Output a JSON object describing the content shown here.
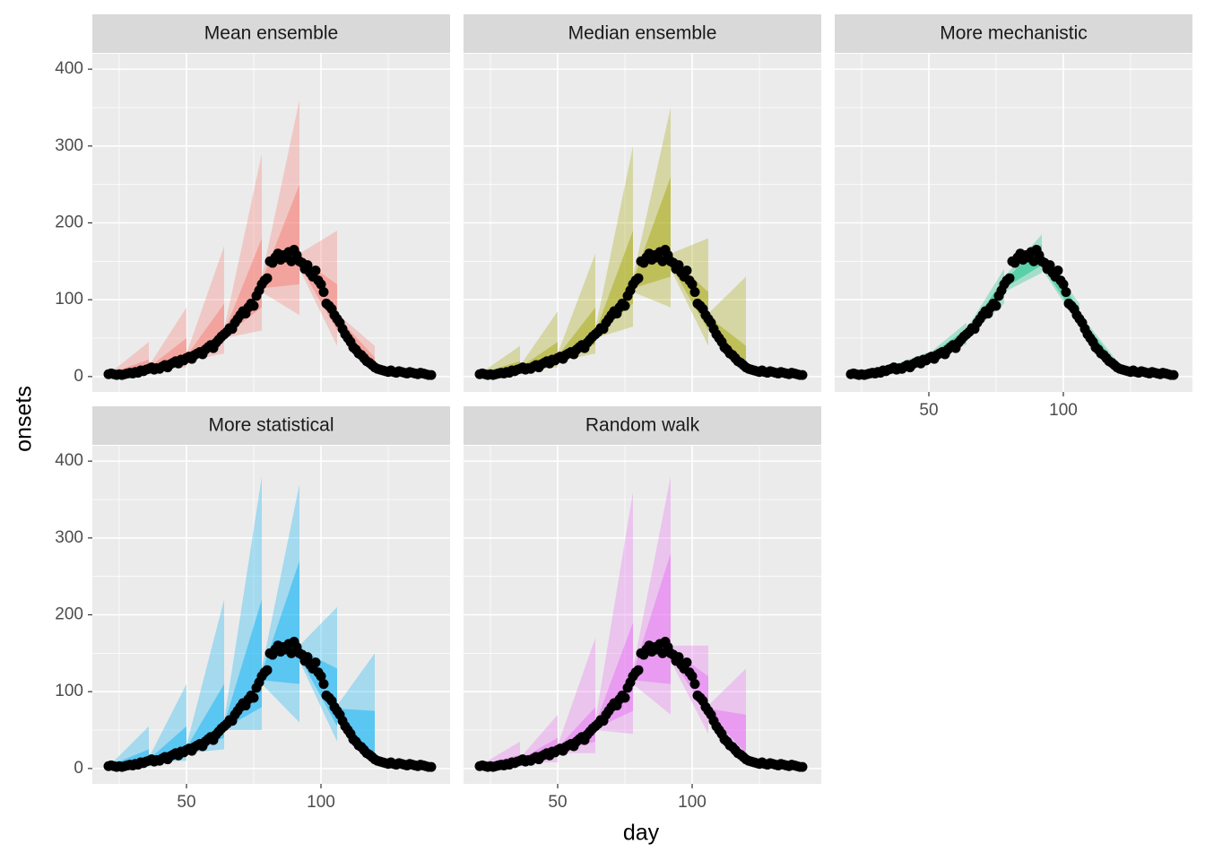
{
  "chart_data": {
    "type": "ribbon",
    "x_label": "day",
    "y_label": "onsets",
    "xlim": [
      15,
      148
    ],
    "ylim": [
      -20,
      420
    ],
    "xticks": [
      50,
      100
    ],
    "yticks": [
      0,
      100,
      200,
      300,
      400
    ],
    "xminor": [
      25,
      75,
      125
    ],
    "yminor": [
      50,
      150,
      250,
      350
    ],
    "grid": true,
    "point_color": "#000000",
    "observed": {
      "x": [
        21,
        22,
        23,
        24,
        25,
        26,
        27,
        28,
        29,
        30,
        31,
        32,
        33,
        34,
        35,
        36,
        37,
        38,
        39,
        40,
        41,
        42,
        43,
        44,
        45,
        46,
        47,
        48,
        49,
        50,
        51,
        52,
        53,
        54,
        55,
        56,
        57,
        58,
        59,
        60,
        61,
        62,
        63,
        64,
        65,
        66,
        67,
        68,
        69,
        70,
        71,
        72,
        73,
        74,
        75,
        76,
        77,
        78,
        79,
        80,
        81,
        82,
        83,
        84,
        85,
        86,
        87,
        88,
        89,
        90,
        91,
        92,
        93,
        94,
        95,
        96,
        97,
        98,
        99,
        100,
        101,
        102,
        103,
        104,
        105,
        106,
        107,
        108,
        109,
        110,
        111,
        112,
        113,
        114,
        115,
        116,
        117,
        118,
        119,
        120,
        121,
        122,
        123,
        124,
        125,
        126,
        127,
        128,
        129,
        130,
        131,
        132,
        133,
        134,
        135,
        136,
        137,
        138,
        139,
        140,
        141
      ],
      "values": [
        3,
        4,
        3,
        2,
        3,
        2,
        3,
        4,
        5,
        4,
        6,
        5,
        8,
        7,
        9,
        10,
        12,
        9,
        11,
        10,
        13,
        15,
        12,
        16,
        18,
        20,
        17,
        22,
        21,
        24,
        26,
        23,
        28,
        30,
        32,
        29,
        35,
        38,
        41,
        37,
        44,
        48,
        52,
        55,
        58,
        63,
        62,
        70,
        75,
        80,
        85,
        82,
        90,
        95,
        92,
        105,
        112,
        120,
        125,
        128,
        150,
        148,
        155,
        160,
        152,
        158,
        155,
        162,
        150,
        165,
        158,
        150,
        148,
        140,
        145,
        135,
        130,
        138,
        125,
        120,
        110,
        95,
        92,
        88,
        80,
        75,
        70,
        62,
        55,
        50,
        45,
        38,
        35,
        30,
        28,
        24,
        20,
        18,
        15,
        12,
        10,
        9,
        8,
        7,
        6,
        8,
        6,
        5,
        7,
        6,
        5,
        4,
        6,
        5,
        4,
        3,
        5,
        4,
        3,
        2,
        2
      ]
    },
    "panels": [
      {
        "title": "Mean ensemble",
        "color": "#F8766D",
        "forecasts": [
          {
            "start": 22,
            "end": 36,
            "lo90": [
              2,
              4
            ],
            "hi90": [
              6,
              45
            ],
            "lo50": [
              3,
              8
            ],
            "hi50": [
              5,
              22
            ]
          },
          {
            "start": 36,
            "end": 50,
            "lo90": [
              8,
              12
            ],
            "hi90": [
              14,
              90
            ],
            "lo50": [
              9,
              20
            ],
            "hi50": [
              12,
              50
            ]
          },
          {
            "start": 50,
            "end": 64,
            "lo90": [
              20,
              30
            ],
            "hi90": [
              30,
              170
            ],
            "lo50": [
              22,
              45
            ],
            "hi50": [
              27,
              95
            ]
          },
          {
            "start": 64,
            "end": 78,
            "lo90": [
              50,
              60
            ],
            "hi90": [
              62,
              290
            ],
            "lo50": [
              52,
              90
            ],
            "hi50": [
              58,
              180
            ]
          },
          {
            "start": 78,
            "end": 92,
            "lo90": [
              110,
              80
            ],
            "hi90": [
              130,
              360
            ],
            "lo50": [
              115,
              120
            ],
            "hi50": [
              125,
              250
            ]
          },
          {
            "start": 92,
            "end": 106,
            "lo90": [
              140,
              40
            ],
            "hi90": [
              160,
              190
            ],
            "lo50": [
              145,
              60
            ],
            "hi50": [
              155,
              120
            ]
          },
          {
            "start": 106,
            "end": 120,
            "lo90": [
              68,
              5
            ],
            "hi90": [
              82,
              40
            ],
            "lo50": [
              72,
              10
            ],
            "hi50": [
              78,
              25
            ]
          }
        ]
      },
      {
        "title": "Median ensemble",
        "color": "#A3A500",
        "forecasts": [
          {
            "start": 22,
            "end": 36,
            "lo90": [
              2,
              4
            ],
            "hi90": [
              6,
              40
            ],
            "lo50": [
              3,
              7
            ],
            "hi50": [
              5,
              20
            ]
          },
          {
            "start": 36,
            "end": 50,
            "lo90": [
              8,
              12
            ],
            "hi90": [
              14,
              85
            ],
            "lo50": [
              9,
              18
            ],
            "hi50": [
              12,
              45
            ]
          },
          {
            "start": 50,
            "end": 64,
            "lo90": [
              20,
              30
            ],
            "hi90": [
              30,
              160
            ],
            "lo50": [
              22,
              42
            ],
            "hi50": [
              27,
              90
            ]
          },
          {
            "start": 64,
            "end": 78,
            "lo90": [
              50,
              65
            ],
            "hi90": [
              62,
              300
            ],
            "lo50": [
              52,
              95
            ],
            "hi50": [
              58,
              190
            ]
          },
          {
            "start": 78,
            "end": 92,
            "lo90": [
              110,
              90
            ],
            "hi90": [
              130,
              350
            ],
            "lo50": [
              115,
              130
            ],
            "hi50": [
              125,
              260
            ]
          },
          {
            "start": 92,
            "end": 106,
            "lo90": [
              140,
              40
            ],
            "hi90": [
              160,
              180
            ],
            "lo50": [
              145,
              60
            ],
            "hi50": [
              155,
              110
            ]
          },
          {
            "start": 106,
            "end": 120,
            "lo90": [
              68,
              5
            ],
            "hi90": [
              82,
              130
            ],
            "lo50": [
              72,
              12
            ],
            "hi50": [
              78,
              40
            ]
          }
        ]
      },
      {
        "title": "More mechanistic",
        "color": "#00BF7D",
        "forecasts": [
          {
            "start": 22,
            "end": 36,
            "lo90": [
              2,
              6
            ],
            "hi90": [
              6,
              16
            ],
            "lo50": [
              3,
              8
            ],
            "hi50": [
              5,
              13
            ]
          },
          {
            "start": 36,
            "end": 50,
            "lo90": [
              8,
              18
            ],
            "hi90": [
              14,
              32
            ],
            "lo50": [
              9,
              21
            ],
            "hi50": [
              12,
              28
            ]
          },
          {
            "start": 50,
            "end": 64,
            "lo90": [
              20,
              42
            ],
            "hi90": [
              30,
              70
            ],
            "lo50": [
              22,
              48
            ],
            "hi50": [
              27,
              62
            ]
          },
          {
            "start": 64,
            "end": 78,
            "lo90": [
              50,
              95
            ],
            "hi90": [
              62,
              140
            ],
            "lo50": [
              52,
              105
            ],
            "hi50": [
              58,
              128
            ]
          },
          {
            "start": 78,
            "end": 92,
            "lo90": [
              110,
              135
            ],
            "hi90": [
              130,
              185
            ],
            "lo50": [
              115,
              145
            ],
            "hi50": [
              125,
              172
            ]
          },
          {
            "start": 92,
            "end": 106,
            "lo90": [
              140,
              65
            ],
            "hi90": [
              160,
              95
            ],
            "lo50": [
              145,
              70
            ],
            "hi50": [
              155,
              88
            ]
          },
          {
            "start": 106,
            "end": 120,
            "lo90": [
              68,
              8
            ],
            "hi90": [
              82,
              20
            ],
            "lo50": [
              72,
              10
            ],
            "hi50": [
              78,
              16
            ]
          }
        ]
      },
      {
        "title": "More statistical",
        "color": "#00B0F6",
        "forecasts": [
          {
            "start": 22,
            "end": 36,
            "lo90": [
              2,
              3
            ],
            "hi90": [
              6,
              55
            ],
            "lo50": [
              3,
              6
            ],
            "hi50": [
              5,
              25
            ]
          },
          {
            "start": 36,
            "end": 50,
            "lo90": [
              8,
              10
            ],
            "hi90": [
              14,
              110
            ],
            "lo50": [
              9,
              18
            ],
            "hi50": [
              12,
              55
            ]
          },
          {
            "start": 50,
            "end": 64,
            "lo90": [
              20,
              25
            ],
            "hi90": [
              30,
              220
            ],
            "lo50": [
              22,
              40
            ],
            "hi50": [
              27,
              110
            ]
          },
          {
            "start": 64,
            "end": 78,
            "lo90": [
              50,
              50
            ],
            "hi90": [
              62,
              380
            ],
            "lo50": [
              52,
              80
            ],
            "hi50": [
              58,
              220
            ]
          },
          {
            "start": 78,
            "end": 92,
            "lo90": [
              110,
              60
            ],
            "hi90": [
              130,
              370
            ],
            "lo50": [
              115,
              110
            ],
            "hi50": [
              125,
              270
            ]
          },
          {
            "start": 92,
            "end": 106,
            "lo90": [
              140,
              35
            ],
            "hi90": [
              160,
              210
            ],
            "lo50": [
              145,
              55
            ],
            "hi50": [
              155,
              130
            ]
          },
          {
            "start": 106,
            "end": 120,
            "lo90": [
              68,
              5
            ],
            "hi90": [
              82,
              150
            ],
            "lo50": [
              72,
              12
            ],
            "hi50": [
              78,
              75
            ]
          }
        ]
      },
      {
        "title": "Random walk",
        "color": "#E76BF3",
        "forecasts": [
          {
            "start": 22,
            "end": 36,
            "lo90": [
              2,
              2
            ],
            "hi90": [
              6,
              35
            ],
            "lo50": [
              3,
              5
            ],
            "hi50": [
              5,
              18
            ]
          },
          {
            "start": 36,
            "end": 50,
            "lo90": [
              8,
              8
            ],
            "hi90": [
              14,
              70
            ],
            "lo50": [
              9,
              15
            ],
            "hi50": [
              12,
              40
            ]
          },
          {
            "start": 50,
            "end": 64,
            "lo90": [
              20,
              20
            ],
            "hi90": [
              30,
              170
            ],
            "lo50": [
              22,
              35
            ],
            "hi50": [
              27,
              80
            ]
          },
          {
            "start": 64,
            "end": 78,
            "lo90": [
              50,
              45
            ],
            "hi90": [
              62,
              360
            ],
            "lo50": [
              52,
              75
            ],
            "hi50": [
              58,
              190
            ]
          },
          {
            "start": 78,
            "end": 92,
            "lo90": [
              110,
              70
            ],
            "hi90": [
              130,
              380
            ],
            "lo50": [
              115,
              110
            ],
            "hi50": [
              125,
              280
            ]
          },
          {
            "start": 92,
            "end": 106,
            "lo90": [
              140,
              45
            ],
            "hi90": [
              160,
              160
            ],
            "lo50": [
              145,
              70
            ],
            "hi50": [
              155,
              120
            ]
          },
          {
            "start": 106,
            "end": 120,
            "lo90": [
              68,
              10
            ],
            "hi90": [
              82,
              130
            ],
            "lo50": [
              72,
              20
            ],
            "hi50": [
              78,
              70
            ]
          }
        ]
      }
    ]
  }
}
